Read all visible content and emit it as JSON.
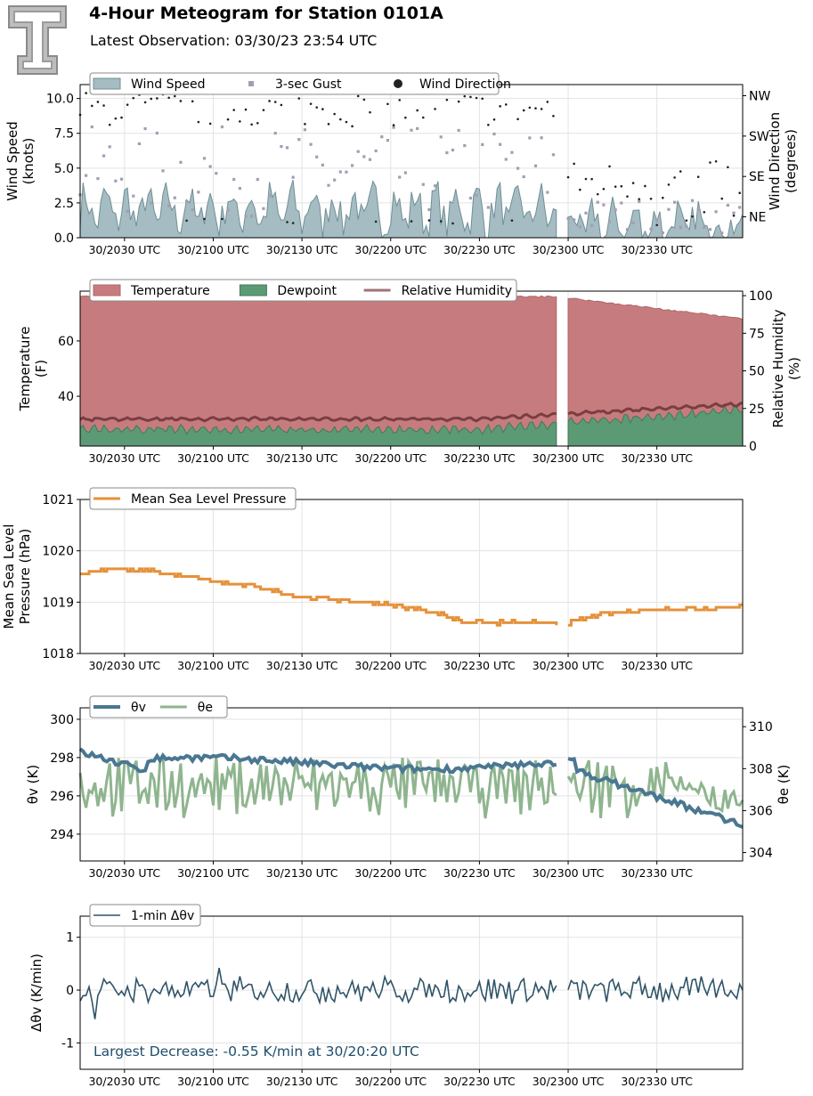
{
  "header": {
    "title": "4-Hour Meteogram for Station 0101A",
    "subtitle": "Latest Observation: 03/30/23 23:54 UTC",
    "logo_letter": "T"
  },
  "time_axis": {
    "tick_labels": [
      "30/2030 UTC",
      "30/2100 UTC",
      "30/2130 UTC",
      "30/2200 UTC",
      "30/2230 UTC",
      "30/2300 UTC",
      "30/2330 UTC"
    ]
  },
  "colors": {
    "wind_fill": "#a5bcc2",
    "wind_edge": "#6f8f96",
    "gust": "#a39db5",
    "direction": "#222222",
    "temperature": "#c67c7e",
    "dewpoint": "#5c9a76",
    "rh": "#7a3e42",
    "pressure": "#e5913a",
    "theta_v": "#4a7791",
    "theta_e": "#8fb58f",
    "delta": "#2f5468",
    "annotation": "#1f4e6b"
  },
  "chart_data": [
    {
      "type": "area",
      "panel": "wind",
      "ylabel": "Wind Speed (knots)",
      "y2label": "Wind Direction (degrees)",
      "ylim": [
        0,
        11
      ],
      "y_ticks": [
        "0.0",
        "2.5",
        "5.0",
        "7.5",
        "10.0"
      ],
      "y2_ticks": [
        "NE",
        "SE",
        "SW",
        "NW"
      ],
      "legend": [
        "Wind Speed",
        "3-sec Gust",
        "Wind Direction"
      ],
      "legend_position": "top-left",
      "grid": true,
      "series": [
        {
          "name": "Wind Speed",
          "x_range_utc": [
            "20:15",
            "23:59"
          ],
          "typical_range": [
            0,
            4.5
          ],
          "gap_utc": [
            "22:57",
            "23:00"
          ]
        },
        {
          "name": "3-sec Gust",
          "typical_range": [
            0,
            8
          ]
        },
        {
          "name": "Wind Direction",
          "early_range": [
            "NE",
            "NW"
          ],
          "late_range": [
            "NE",
            "SE"
          ]
        }
      ]
    },
    {
      "type": "area",
      "panel": "thermo",
      "ylabel": "Temperature (F)",
      "y2label": "Relative Humidity (%)",
      "y_ticks": [
        "40",
        "60"
      ],
      "y2_ticks": [
        "0",
        "25",
        "50",
        "75",
        "100"
      ],
      "legend": [
        "Temperature",
        "Dewpoint",
        "Relative Humidity"
      ],
      "legend_position": "top-left",
      "grid": false,
      "series": [
        {
          "name": "Temperature",
          "start": 76,
          "end": 68,
          "gap_utc": [
            "22:57",
            "23:00"
          ]
        },
        {
          "name": "Dewpoint",
          "start": 28,
          "end": 35
        },
        {
          "name": "Relative Humidity",
          "start": 18,
          "end": 28
        }
      ]
    },
    {
      "type": "line",
      "panel": "pressure",
      "ylabel": "Mean Sea Level Pressure (hPa)",
      "ylim": [
        1018,
        1021
      ],
      "y_ticks": [
        "1018",
        "1019",
        "1020",
        "1021"
      ],
      "legend": [
        "Mean Sea Level Pressure"
      ],
      "legend_position": "top-left",
      "grid": true,
      "series": [
        {
          "name": "Mean Sea Level Pressure",
          "points": [
            [
              "20:15",
              1019.55
            ],
            [
              "20:25",
              1019.65
            ],
            [
              "20:40",
              1019.6
            ],
            [
              "20:50",
              1019.5
            ],
            [
              "21:00",
              1019.4
            ],
            [
              "21:15",
              1019.3
            ],
            [
              "21:30",
              1019.1
            ],
            [
              "21:45",
              1019.02
            ],
            [
              "22:00",
              1018.95
            ],
            [
              "22:15",
              1018.8
            ],
            [
              "22:25",
              1018.6
            ],
            [
              "22:35",
              1018.6
            ],
            [
              "22:57",
              1018.6
            ],
            [
              "23:00",
              1018.6
            ],
            [
              "23:10",
              1018.75
            ],
            [
              "23:25",
              1018.85
            ],
            [
              "23:45",
              1018.88
            ],
            [
              "23:59",
              1018.93
            ]
          ]
        }
      ]
    },
    {
      "type": "line",
      "panel": "theta",
      "ylabel": "θv (K)",
      "y2label": "θe (K)",
      "y_ticks": [
        "294",
        "296",
        "298",
        "300"
      ],
      "y2_ticks": [
        "304",
        "306",
        "308",
        "310"
      ],
      "legend": [
        "θv",
        "θe"
      ],
      "legend_position": "top-left",
      "grid": true,
      "series": [
        {
          "name": "θv",
          "start": 298.3,
          "mid": 297.9,
          "end": 294.5
        },
        {
          "name": "θe",
          "range": [
            305.5,
            308.5
          ],
          "end": 306.2
        }
      ]
    },
    {
      "type": "line",
      "panel": "delta",
      "ylabel": "Δθv (K/min)",
      "ylim": [
        -1.5,
        1.4
      ],
      "y_ticks": [
        "-1",
        "0",
        "1"
      ],
      "legend": [
        "1-min Δθv"
      ],
      "legend_position": "top-left",
      "grid": true,
      "annotation": "Largest Decrease: -0.55 K/min at 30/20:20 UTC",
      "series": [
        {
          "name": "1-min Δθv",
          "typical_range": [
            -0.3,
            0.3
          ],
          "min": -0.55,
          "min_time_utc": "20:20",
          "max": 0.42
        }
      ]
    }
  ]
}
